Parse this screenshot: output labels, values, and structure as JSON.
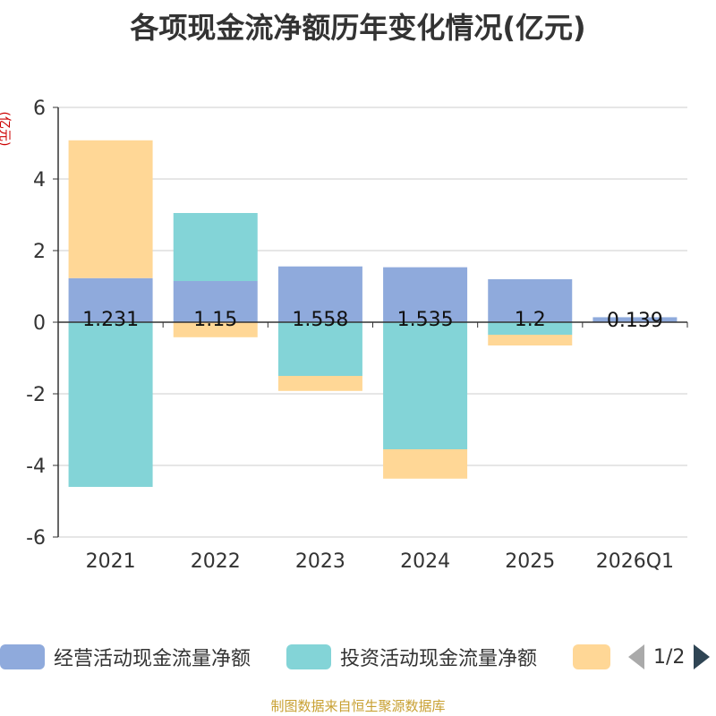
{
  "chart_data": {
    "type": "bar",
    "stacked": true,
    "title": "各项现金流净额历年变化情况(亿元)",
    "ylabel": "(亿元)",
    "ylim": [
      -6,
      6
    ],
    "yticks": [
      6,
      4,
      2,
      0,
      -2,
      -4,
      -6
    ],
    "categories": [
      "2021",
      "2022",
      "2023",
      "2024",
      "2025",
      "2026Q1"
    ],
    "series": [
      {
        "name": "经营活动现金流量净额",
        "color": "#8faadc",
        "values": [
          1.231,
          1.15,
          1.558,
          1.535,
          1.2,
          0.139
        ],
        "labels": [
          "1.231",
          "1.15",
          "1.558",
          "1.535",
          "1.2",
          "0.139"
        ]
      },
      {
        "name": "投资活动现金流量净额",
        "color": "#83d4d7",
        "values": [
          -4.6,
          1.9,
          -1.5,
          -3.55,
          -0.35,
          0
        ]
      },
      {
        "name": "",
        "color": "#ffd796",
        "values": [
          3.85,
          -0.42,
          -0.42,
          -0.82,
          -0.3,
          0
        ]
      }
    ]
  },
  "legend": {
    "items": [
      {
        "label": "经营活动现金流量净额",
        "color": "#8faadc"
      },
      {
        "label": "投资活动现金流量净额",
        "color": "#83d4d7"
      },
      {
        "label": "",
        "color": "#ffd796"
      }
    ],
    "page": "1/2"
  },
  "source": "制图数据来自恒生聚源数据库"
}
